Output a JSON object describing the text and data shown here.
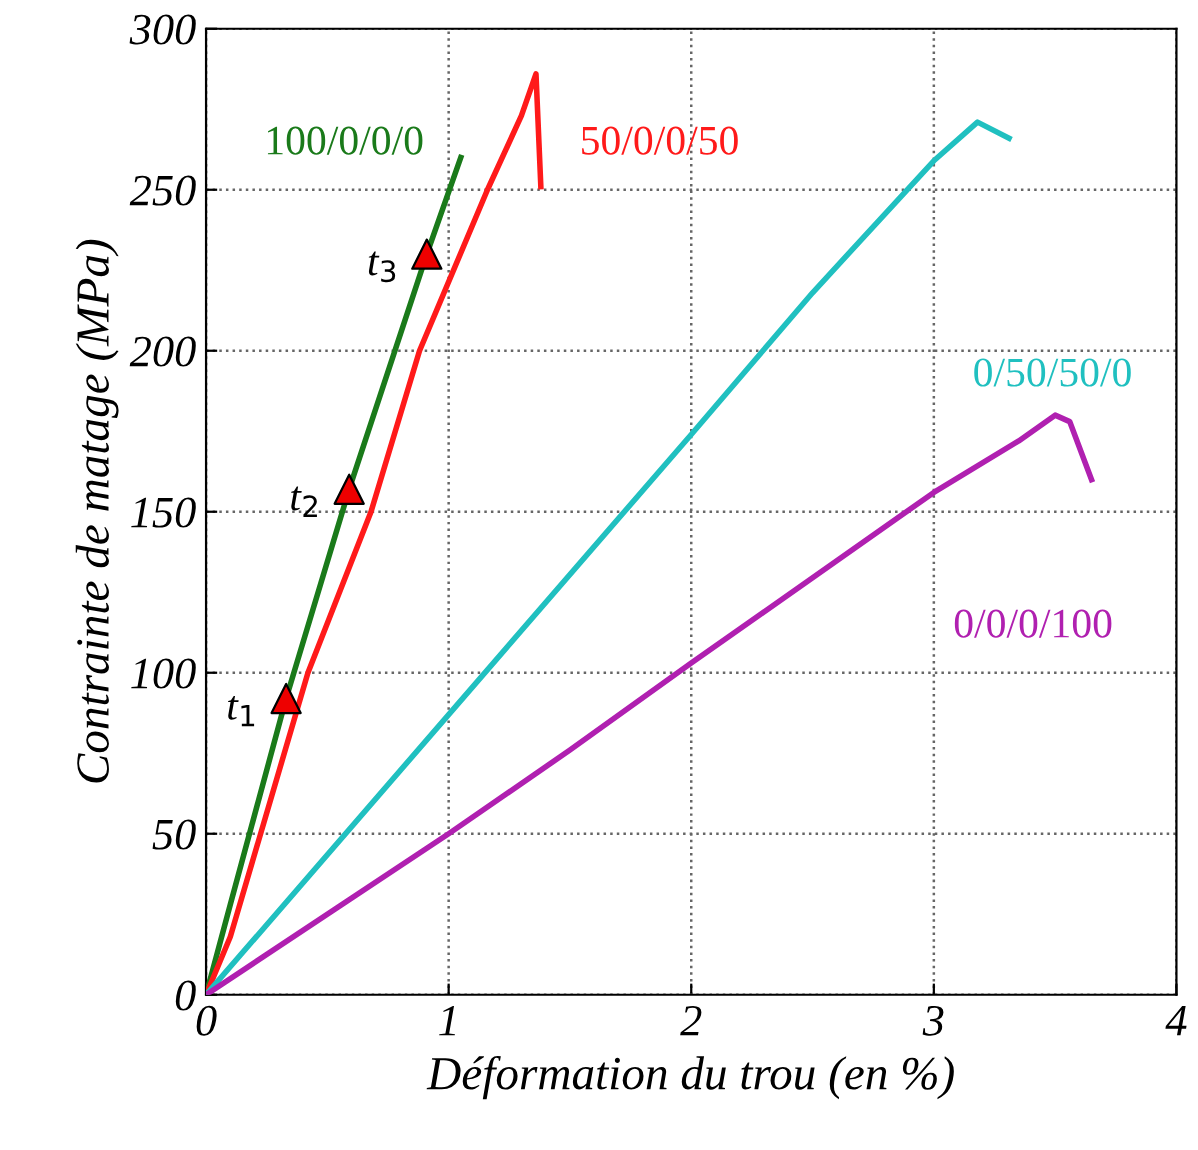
{
  "chart_data": {
    "type": "line",
    "xlabel": "Déformation du trou (en %)",
    "ylabel": "Contrainte de matage (MPa)",
    "xlim": [
      0,
      4
    ],
    "ylim": [
      0,
      300
    ],
    "xticks": [
      0,
      1,
      2,
      3,
      4
    ],
    "yticks": [
      0,
      50,
      100,
      150,
      200,
      250,
      300
    ],
    "grid": true,
    "legend": false,
    "marker": "none",
    "line_style": "solid",
    "series": [
      {
        "name": "100/0/0/0",
        "color": "#1a7a1a",
        "x": [
          0,
          0.1,
          0.33,
          0.59,
          0.91,
          1.05
        ],
        "values": [
          0,
          28,
          92,
          157,
          230,
          260
        ]
      },
      {
        "name": "50/0/0/50",
        "color": "#ff1a1a",
        "x": [
          0,
          0.1,
          0.42,
          0.68,
          0.88,
          1.16,
          1.3,
          1.36,
          1.38
        ],
        "values": [
          0,
          18,
          100,
          150,
          200,
          250,
          273,
          286,
          251
        ]
      },
      {
        "name": "0/50/50/0",
        "color": "#20c0c0",
        "x": [
          0,
          1,
          2,
          2.5,
          3,
          3.18,
          3.31
        ],
        "values": [
          0,
          87,
          174,
          218,
          259,
          271,
          266
        ]
      },
      {
        "name": "0/0/0/100",
        "color": "#b020b0",
        "x": [
          0,
          1,
          1.5,
          2,
          3,
          3.35,
          3.5,
          3.56,
          3.65
        ],
        "values": [
          0,
          50,
          76,
          103,
          156,
          172,
          180,
          178,
          160
        ]
      },
      {
        "type": "scatter",
        "marker": "triangle",
        "color": "#ee0000",
        "x": [
          0.33,
          0.59,
          0.91
        ],
        "values": [
          92,
          157,
          230
        ]
      }
    ],
    "annotations": [
      {
        "text": "t$_{1}$",
        "x": 0.33,
        "y": 92
      },
      {
        "text": "t$_{2}$",
        "x": 0.59,
        "y": 157
      },
      {
        "text": "t$_{3}$",
        "x": 0.91,
        "y": 230
      }
    ]
  }
}
